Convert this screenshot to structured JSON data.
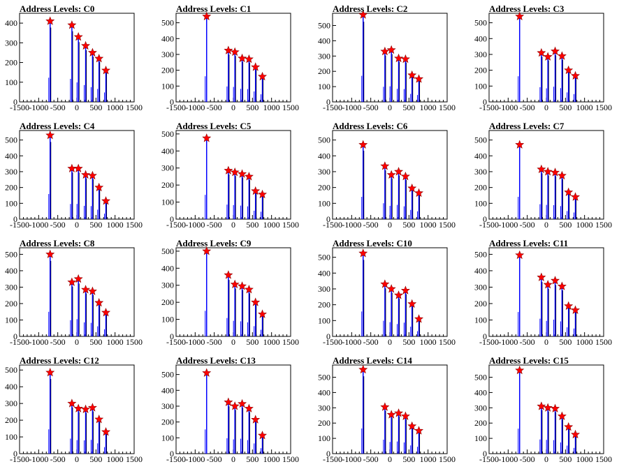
{
  "x_ticks": [
    "-1500",
    "-1000",
    "-500",
    "0",
    "500",
    "1000",
    "1500"
  ],
  "colors": {
    "spike": "#0000ff",
    "peak_spike": "#000000",
    "marker": "#ff0000",
    "axis": "#000000"
  },
  "chart_data": [
    {
      "type": "bar",
      "title": "Address Levels: C0",
      "xlim": [
        -1500,
        1500
      ],
      "ylim": [
        0,
        450
      ],
      "yticks": [
        0,
        100,
        200,
        300,
        400
      ],
      "peaks": [
        {
          "x": -700,
          "y": 410
        },
        {
          "x": -130,
          "y": 390
        },
        {
          "x": 40,
          "y": 330
        },
        {
          "x": 230,
          "y": 285
        },
        {
          "x": 410,
          "y": 250
        },
        {
          "x": 580,
          "y": 220
        },
        {
          "x": 760,
          "y": 160
        }
      ]
    },
    {
      "type": "bar",
      "title": "Address Levels: C1",
      "xlim": [
        -1500,
        1500
      ],
      "ylim": [
        0,
        560
      ],
      "yticks": [
        0,
        100,
        200,
        300,
        400,
        500
      ],
      "peaks": [
        {
          "x": -700,
          "y": 540
        },
        {
          "x": -130,
          "y": 325
        },
        {
          "x": 40,
          "y": 315
        },
        {
          "x": 230,
          "y": 275
        },
        {
          "x": 410,
          "y": 270
        },
        {
          "x": 580,
          "y": 220
        },
        {
          "x": 760,
          "y": 160
        }
      ]
    },
    {
      "type": "bar",
      "title": "Address Levels: C2",
      "xlim": [
        -1500,
        1500
      ],
      "ylim": [
        0,
        580
      ],
      "yticks": [
        0,
        100,
        200,
        300,
        400,
        500
      ],
      "peaks": [
        {
          "x": -700,
          "y": 570
        },
        {
          "x": -130,
          "y": 330
        },
        {
          "x": 40,
          "y": 340
        },
        {
          "x": 230,
          "y": 285
        },
        {
          "x": 410,
          "y": 280
        },
        {
          "x": 580,
          "y": 175
        },
        {
          "x": 760,
          "y": 150
        }
      ]
    },
    {
      "type": "bar",
      "title": "Address Levels: C3",
      "xlim": [
        -1500,
        1500
      ],
      "ylim": [
        0,
        560
      ],
      "yticks": [
        0,
        100,
        200,
        300,
        400,
        500
      ],
      "peaks": [
        {
          "x": -700,
          "y": 540
        },
        {
          "x": -130,
          "y": 310
        },
        {
          "x": 40,
          "y": 285
        },
        {
          "x": 230,
          "y": 320
        },
        {
          "x": 410,
          "y": 290
        },
        {
          "x": 580,
          "y": 200
        },
        {
          "x": 760,
          "y": 165
        }
      ]
    },
    {
      "type": "bar",
      "title": "Address Levels: C4",
      "xlim": [
        -1500,
        1500
      ],
      "ylim": [
        0,
        560
      ],
      "yticks": [
        0,
        100,
        200,
        300,
        400,
        500
      ],
      "peaks": [
        {
          "x": -700,
          "y": 530
        },
        {
          "x": -130,
          "y": 320
        },
        {
          "x": 40,
          "y": 320
        },
        {
          "x": 230,
          "y": 280
        },
        {
          "x": 410,
          "y": 275
        },
        {
          "x": 580,
          "y": 200
        },
        {
          "x": 760,
          "y": 115
        }
      ]
    },
    {
      "type": "bar",
      "title": "Address Levels: C5",
      "xlim": [
        -1500,
        1500
      ],
      "ylim": [
        0,
        520
      ],
      "yticks": [
        0,
        100,
        200,
        300,
        400,
        500
      ],
      "peaks": [
        {
          "x": -700,
          "y": 475
        },
        {
          "x": -130,
          "y": 285
        },
        {
          "x": 40,
          "y": 275
        },
        {
          "x": 230,
          "y": 265
        },
        {
          "x": 410,
          "y": 250
        },
        {
          "x": 580,
          "y": 165
        },
        {
          "x": 760,
          "y": 145
        }
      ]
    },
    {
      "type": "bar",
      "title": "Address Levels: C6",
      "xlim": [
        -1500,
        1500
      ],
      "ylim": [
        0,
        560
      ],
      "yticks": [
        0,
        100,
        200,
        300,
        400,
        500
      ],
      "peaks": [
        {
          "x": -700,
          "y": 470
        },
        {
          "x": -130,
          "y": 335
        },
        {
          "x": 40,
          "y": 280
        },
        {
          "x": 230,
          "y": 300
        },
        {
          "x": 410,
          "y": 270
        },
        {
          "x": 580,
          "y": 195
        },
        {
          "x": 760,
          "y": 165
        }
      ]
    },
    {
      "type": "bar",
      "title": "Address Levels: C7",
      "xlim": [
        -1500,
        1500
      ],
      "ylim": [
        0,
        560
      ],
      "yticks": [
        0,
        100,
        200,
        300,
        400,
        500
      ],
      "peaks": [
        {
          "x": -700,
          "y": 470
        },
        {
          "x": -130,
          "y": 315
        },
        {
          "x": 40,
          "y": 300
        },
        {
          "x": 230,
          "y": 295
        },
        {
          "x": 410,
          "y": 275
        },
        {
          "x": 580,
          "y": 170
        },
        {
          "x": 760,
          "y": 140
        }
      ]
    },
    {
      "type": "bar",
      "title": "Address Levels: C8",
      "xlim": [
        -1500,
        1500
      ],
      "ylim": [
        0,
        540
      ],
      "yticks": [
        0,
        100,
        200,
        300,
        400,
        500
      ],
      "peaks": [
        {
          "x": -700,
          "y": 500
        },
        {
          "x": -130,
          "y": 330
        },
        {
          "x": 40,
          "y": 350
        },
        {
          "x": 230,
          "y": 285
        },
        {
          "x": 410,
          "y": 275
        },
        {
          "x": 580,
          "y": 205
        },
        {
          "x": 760,
          "y": 145
        }
      ]
    },
    {
      "type": "bar",
      "title": "Address Levels: C9",
      "xlim": [
        -1500,
        1500
      ],
      "ylim": [
        0,
        520
      ],
      "yticks": [
        0,
        100,
        200,
        300,
        400,
        500
      ],
      "peaks": [
        {
          "x": -700,
          "y": 500
        },
        {
          "x": -130,
          "y": 360
        },
        {
          "x": 40,
          "y": 305
        },
        {
          "x": 230,
          "y": 295
        },
        {
          "x": 410,
          "y": 275
        },
        {
          "x": 580,
          "y": 200
        },
        {
          "x": 760,
          "y": 130
        }
      ]
    },
    {
      "type": "bar",
      "title": "Address Levels: C10",
      "xlim": [
        -1500,
        1500
      ],
      "ylim": [
        0,
        560
      ],
      "yticks": [
        0,
        100,
        200,
        300,
        400,
        500
      ],
      "peaks": [
        {
          "x": -700,
          "y": 525
        },
        {
          "x": -130,
          "y": 330
        },
        {
          "x": 40,
          "y": 300
        },
        {
          "x": 230,
          "y": 260
        },
        {
          "x": 410,
          "y": 290
        },
        {
          "x": 580,
          "y": 205
        },
        {
          "x": 760,
          "y": 110
        }
      ]
    },
    {
      "type": "bar",
      "title": "Address Levels: C11",
      "xlim": [
        -1500,
        1500
      ],
      "ylim": [
        0,
        540
      ],
      "yticks": [
        0,
        100,
        200,
        300,
        400,
        500
      ],
      "peaks": [
        {
          "x": -700,
          "y": 495
        },
        {
          "x": -130,
          "y": 360
        },
        {
          "x": 40,
          "y": 315
        },
        {
          "x": 230,
          "y": 340
        },
        {
          "x": 410,
          "y": 305
        },
        {
          "x": 580,
          "y": 185
        },
        {
          "x": 760,
          "y": 160
        }
      ]
    },
    {
      "type": "bar",
      "title": "Address Levels: C12",
      "xlim": [
        -1500,
        1500
      ],
      "ylim": [
        0,
        530
      ],
      "yticks": [
        0,
        100,
        200,
        300,
        400,
        500
      ],
      "peaks": [
        {
          "x": -700,
          "y": 485
        },
        {
          "x": -130,
          "y": 300
        },
        {
          "x": 40,
          "y": 270
        },
        {
          "x": 230,
          "y": 265
        },
        {
          "x": 410,
          "y": 275
        },
        {
          "x": 580,
          "y": 205
        },
        {
          "x": 760,
          "y": 130
        }
      ]
    },
    {
      "type": "bar",
      "title": "Address Levels: C13",
      "xlim": [
        -1500,
        1500
      ],
      "ylim": [
        0,
        560
      ],
      "yticks": [
        0,
        100,
        200,
        300,
        400,
        500
      ],
      "peaks": [
        {
          "x": -700,
          "y": 510
        },
        {
          "x": -130,
          "y": 325
        },
        {
          "x": 40,
          "y": 300
        },
        {
          "x": 230,
          "y": 315
        },
        {
          "x": 410,
          "y": 285
        },
        {
          "x": 580,
          "y": 215
        },
        {
          "x": 760,
          "y": 115
        }
      ]
    },
    {
      "type": "bar",
      "title": "Address Levels: C14",
      "xlim": [
        -1500,
        1500
      ],
      "ylim": [
        0,
        580
      ],
      "yticks": [
        0,
        100,
        200,
        300,
        400,
        500
      ],
      "peaks": [
        {
          "x": -700,
          "y": 550
        },
        {
          "x": -130,
          "y": 305
        },
        {
          "x": 40,
          "y": 255
        },
        {
          "x": 230,
          "y": 265
        },
        {
          "x": 410,
          "y": 245
        },
        {
          "x": 580,
          "y": 180
        },
        {
          "x": 760,
          "y": 150
        }
      ]
    },
    {
      "type": "bar",
      "title": "Address Levels: C15",
      "xlim": [
        -1500,
        1500
      ],
      "ylim": [
        0,
        580
      ],
      "yticks": [
        0,
        100,
        200,
        300,
        400,
        500
      ],
      "peaks": [
        {
          "x": -700,
          "y": 545
        },
        {
          "x": -130,
          "y": 310
        },
        {
          "x": 40,
          "y": 300
        },
        {
          "x": 230,
          "y": 295
        },
        {
          "x": 410,
          "y": 245
        },
        {
          "x": 580,
          "y": 175
        },
        {
          "x": 760,
          "y": 125
        }
      ]
    }
  ]
}
